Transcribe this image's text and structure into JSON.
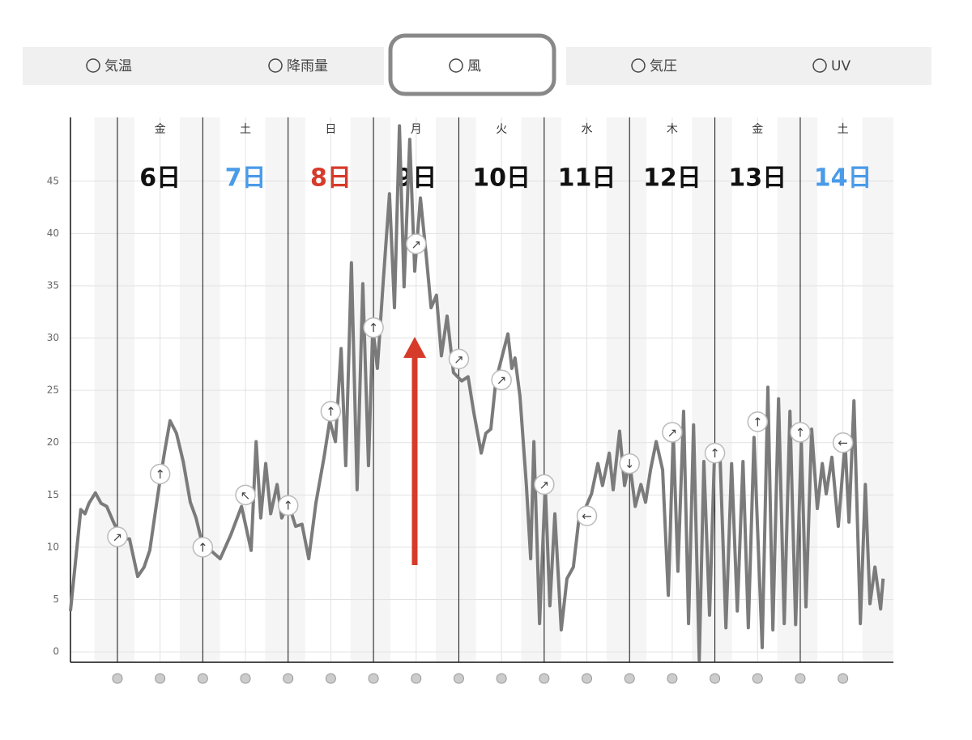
{
  "tabs": [
    {
      "label": "気温",
      "selected": false
    },
    {
      "label": "降雨量",
      "selected": false
    },
    {
      "label": "風",
      "selected": true
    },
    {
      "label": "気圧",
      "selected": false
    },
    {
      "label": "UV",
      "selected": false
    }
  ],
  "chart_data": {
    "type": "line",
    "color": "#7b7b7b",
    "ylim": [
      -1,
      51.1
    ],
    "yticks": [
      0,
      5,
      10,
      15,
      20,
      25,
      30,
      35,
      40,
      45
    ],
    "grid": true,
    "xlim": [
      -13.2,
      218.2
    ],
    "xticks": [
      0,
      24,
      48,
      72,
      96,
      120,
      144,
      168,
      192
    ],
    "days": [
      {
        "weekday": "金",
        "date": "6日",
        "color": "#111111"
      },
      {
        "weekday": "土",
        "date": "7日",
        "color": "#4a9be8"
      },
      {
        "weekday": "日",
        "date": "8日",
        "color": "#d63b2a"
      },
      {
        "weekday": "月",
        "date": "9日",
        "color": "#111111"
      },
      {
        "weekday": "火",
        "date": "10日",
        "color": "#111111"
      },
      {
        "weekday": "水",
        "date": "11日",
        "color": "#111111"
      },
      {
        "weekday": "木",
        "date": "12日",
        "color": "#111111"
      },
      {
        "weekday": "金",
        "date": "13日",
        "color": "#111111"
      },
      {
        "weekday": "土",
        "date": "14日",
        "color": "#4a9be8"
      }
    ],
    "x": [
      -13.2,
      -10.3,
      -9.1,
      -8.0,
      -6.2,
      -4.6,
      -3.0,
      -1.1,
      1.1,
      3.4,
      5.7,
      7.5,
      9.1,
      11.4,
      13.2,
      14.8,
      16.6,
      18.5,
      20.5,
      22.1,
      23.9,
      26.2,
      28.9,
      31.9,
      34.9,
      37.6,
      39.0,
      40.3,
      41.7,
      43.1,
      44.9,
      46.2,
      48.1,
      50.1,
      51.9,
      53.8,
      55.8,
      58.1,
      59.7,
      61.3,
      62.9,
      64.2,
      65.8,
      67.4,
      69.0,
      70.6,
      71.8,
      73.1,
      74.7,
      76.5,
      77.9,
      79.3,
      80.6,
      82.2,
      83.6,
      85.2,
      86.8,
      88.2,
      89.7,
      91.1,
      92.7,
      94.5,
      96.8,
      98.6,
      100.2,
      102.3,
      103.6,
      105.0,
      106.4,
      108.2,
      109.8,
      110.9,
      111.8,
      113.2,
      115.0,
      116.2,
      117.1,
      118.7,
      120.3,
      121.6,
      123.0,
      124.8,
      126.4,
      128.2,
      129.8,
      131.4,
      133.3,
      135.1,
      136.4,
      138.3,
      139.4,
      141.2,
      142.6,
      144.0,
      145.6,
      147.2,
      148.5,
      149.9,
      151.5,
      153.3,
      154.9,
      156.3,
      157.6,
      159.2,
      160.6,
      162.0,
      163.6,
      164.9,
      166.5,
      167.9,
      169.5,
      171.1,
      172.7,
      174.3,
      175.9,
      177.4,
      179.0,
      181.3,
      182.9,
      184.3,
      185.9,
      187.5,
      189.1,
      190.7,
      192.3,
      193.6,
      195.2,
      196.8,
      198.2,
      199.3,
      200.9,
      202.7,
      204.6,
      205.7,
      207.1,
      208.9,
      210.3,
      211.6,
      213.0,
      214.6,
      215.3
    ],
    "values": [
      3.9,
      13.6,
      13.2,
      14.2,
      15.2,
      14.2,
      13.9,
      12.4,
      10.8,
      10.8,
      7.2,
      8.1,
      9.7,
      15.1,
      19.0,
      22.1,
      20.9,
      18.2,
      14.3,
      12.8,
      10.3,
      9.7,
      8.9,
      11.2,
      13.9,
      9.7,
      20.1,
      12.8,
      18.0,
      13.2,
      16.0,
      12.8,
      14.2,
      12.0,
      12.2,
      8.9,
      14.2,
      18.6,
      22.1,
      20.1,
      29.0,
      17.8,
      37.2,
      15.5,
      35.2,
      17.8,
      31.0,
      27.1,
      35.2,
      43.8,
      32.9,
      50.3,
      34.9,
      49.0,
      36.4,
      43.4,
      38.0,
      32.9,
      34.1,
      28.3,
      32.1,
      26.7,
      25.9,
      26.3,
      22.9,
      19.0,
      20.9,
      21.3,
      25.9,
      28.3,
      30.4,
      27.1,
      28.1,
      24.4,
      15.9,
      8.9,
      20.1,
      2.7,
      15.9,
      4.4,
      13.2,
      2.1,
      7.0,
      8.1,
      12.8,
      13.6,
      15.1,
      18.0,
      15.9,
      19.0,
      15.5,
      21.1,
      15.9,
      18.2,
      13.9,
      16.0,
      14.3,
      17.4,
      20.1,
      17.4,
      5.4,
      20.9,
      7.7,
      23.0,
      2.7,
      21.7,
      -0.8,
      18.2,
      3.5,
      19.0,
      18.2,
      2.3,
      18.0,
      3.9,
      18.2,
      2.3,
      20.5,
      0.4,
      25.3,
      2.1,
      24.2,
      2.7,
      23.0,
      2.6,
      20.1,
      4.3,
      21.3,
      13.7,
      18.0,
      15.1,
      18.6,
      12.0,
      20.1,
      12.4,
      24.0,
      2.7,
      16.0,
      4.6,
      8.1,
      4.1,
      7.0
    ],
    "markers": [
      {
        "x": 0,
        "value": 11,
        "arrow": "↗"
      },
      {
        "x": 12,
        "value": 17,
        "arrow": "↑"
      },
      {
        "x": 24,
        "value": 10,
        "arrow": "↑"
      },
      {
        "x": 36,
        "value": 15,
        "arrow": "↖"
      },
      {
        "x": 48,
        "value": 14,
        "arrow": "↑"
      },
      {
        "x": 60,
        "value": 23,
        "arrow": "↑"
      },
      {
        "x": 72,
        "value": 31,
        "arrow": "↑"
      },
      {
        "x": 84,
        "value": 39,
        "arrow": "↗"
      },
      {
        "x": 96,
        "value": 28,
        "arrow": "↗"
      },
      {
        "x": 108,
        "value": 26,
        "arrow": "↗"
      },
      {
        "x": 120,
        "value": 16,
        "arrow": "↗"
      },
      {
        "x": 132,
        "value": 13,
        "arrow": "←"
      },
      {
        "x": 144,
        "value": 18,
        "arrow": "↓"
      },
      {
        "x": 156,
        "value": 21,
        "arrow": "↗"
      },
      {
        "x": 168,
        "value": 19,
        "arrow": "↑"
      },
      {
        "x": 180,
        "value": 22,
        "arrow": "↑"
      },
      {
        "x": 192,
        "value": 21,
        "arrow": "↑"
      },
      {
        "x": 204,
        "value": 20,
        "arrow": "←"
      }
    ]
  }
}
